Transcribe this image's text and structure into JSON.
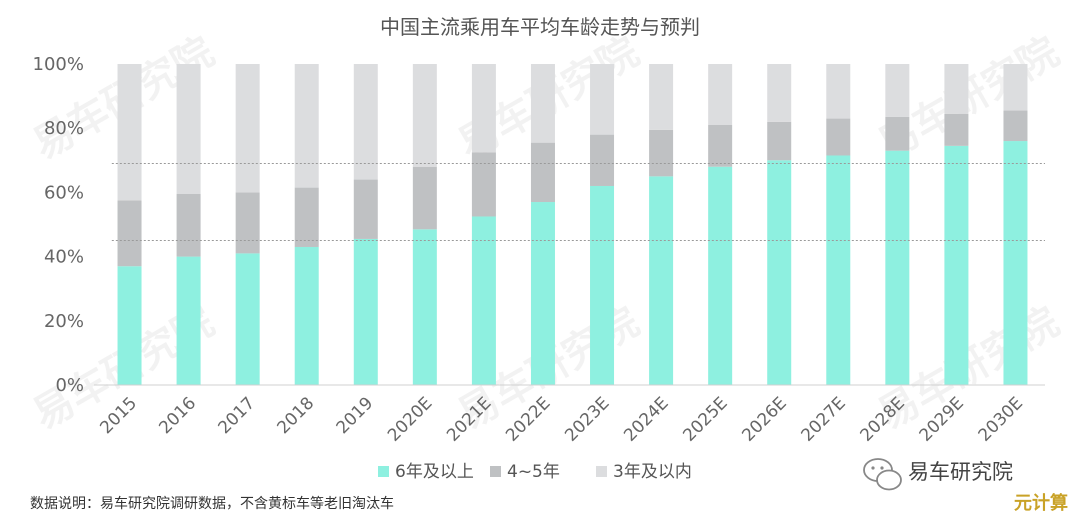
{
  "chart_data": {
    "type": "bar",
    "stacked": true,
    "title": "中国主流乘用车平均车龄走势与预判",
    "categories": [
      "2015",
      "2016",
      "2017",
      "2018",
      "2019",
      "2020E",
      "2021E",
      "2022E",
      "2023E",
      "2024E",
      "2025E",
      "2026E",
      "2027E",
      "2028E",
      "2029E",
      "2030E"
    ],
    "series": [
      {
        "name": "6年及以上",
        "color": "#8ef0e0",
        "values": [
          37,
          40,
          41,
          43,
          45.5,
          48.5,
          52.5,
          57,
          62,
          65,
          68,
          70,
          71.5,
          73,
          74.5,
          76
        ]
      },
      {
        "name": "4~5年",
        "color": "#bfc1c3",
        "values": [
          20.5,
          19.5,
          19,
          18.5,
          18.5,
          19.5,
          20,
          18.5,
          16,
          14.5,
          13,
          12,
          11.5,
          10.5,
          10,
          9.5
        ]
      },
      {
        "name": "3年及以内",
        "color": "#dcdddf",
        "values": [
          42.5,
          40.5,
          40,
          38.5,
          36,
          32,
          27.5,
          24.5,
          22,
          20.5,
          19,
          18,
          17,
          16.5,
          15.5,
          14.5
        ]
      }
    ],
    "ylim": [
      0,
      100
    ],
    "yticks": [
      "0%",
      "20%",
      "40%",
      "60%",
      "80%",
      "100%"
    ],
    "grid": false,
    "legend_position": "bottom"
  },
  "footer": {
    "source_note": "数据说明：易车研究院调研数据，不含黄标车等老旧淘汰车",
    "brand_label": "易车研究院",
    "site_label": "元计算"
  },
  "watermark": {
    "text": "易车研究院"
  },
  "icons": {
    "wechat": "wechat-icon"
  }
}
